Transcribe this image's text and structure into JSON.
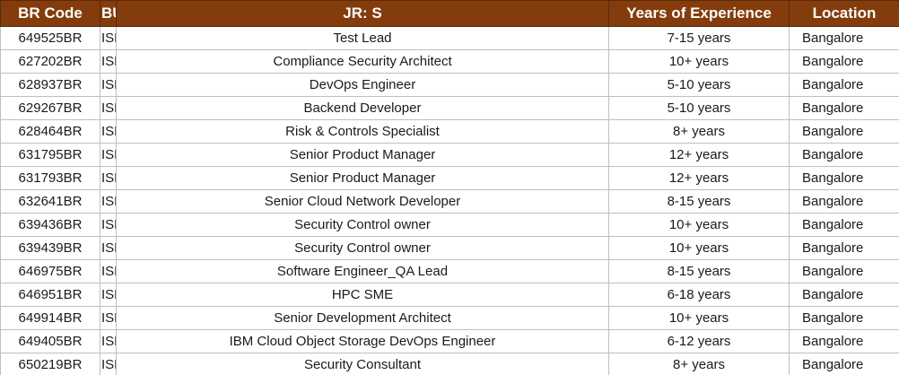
{
  "headers": {
    "br_code": "BR Code",
    "bu": "BU",
    "jr": "JR: S",
    "years": "Years of Experience",
    "location": "Location"
  },
  "rows": [
    {
      "br": "649525BR",
      "bu": "ISL",
      "jr": "Test Lead",
      "years": "7-15 years",
      "location": "Bangalore"
    },
    {
      "br": "627202BR",
      "bu": "ISL",
      "jr": "Compliance Security Architect",
      "years": "10+ years",
      "location": "Bangalore"
    },
    {
      "br": "628937BR",
      "bu": "ISL",
      "jr": "DevOps Engineer",
      "years": "5-10 years",
      "location": "Bangalore"
    },
    {
      "br": "629267BR",
      "bu": "ISL",
      "jr": "Backend Developer",
      "years": "5-10 years",
      "location": "Bangalore"
    },
    {
      "br": "628464BR",
      "bu": "ISL",
      "jr": "Risk & Controls Specialist",
      "years": "8+ years",
      "location": "Bangalore"
    },
    {
      "br": "631795BR",
      "bu": "ISL",
      "jr": "Senior Product Manager",
      "years": "12+ years",
      "location": "Bangalore"
    },
    {
      "br": "631793BR",
      "bu": "ISL",
      "jr": "Senior Product Manager",
      "years": "12+ years",
      "location": "Bangalore"
    },
    {
      "br": "632641BR",
      "bu": "ISL",
      "jr": "Senior Cloud Network Developer",
      "years": "8-15 years",
      "location": "Bangalore"
    },
    {
      "br": "639436BR",
      "bu": "ISL",
      "jr": "Security Control owner",
      "years": "10+ years",
      "location": "Bangalore"
    },
    {
      "br": "639439BR",
      "bu": "ISL",
      "jr": "Security Control owner",
      "years": "10+ years",
      "location": "Bangalore"
    },
    {
      "br": "646975BR",
      "bu": "ISL",
      "jr": "Software Engineer_QA Lead",
      "years": "8-15 years",
      "location": "Bangalore"
    },
    {
      "br": "646951BR",
      "bu": "ISL",
      "jr": "HPC SME",
      "years": "6-18 years",
      "location": "Bangalore"
    },
    {
      "br": "649914BR",
      "bu": "ISL",
      "jr": "Senior Development Architect",
      "years": "10+ years",
      "location": "Bangalore"
    },
    {
      "br": "649405BR",
      "bu": "ISL",
      "jr": "IBM Cloud Object Storage DevOps Engineer",
      "years": "6-12 years",
      "location": "Bangalore"
    },
    {
      "br": "650219BR",
      "bu": "ISL",
      "jr": "Security Consultant",
      "years": "8+ years",
      "location": "Bangalore"
    }
  ],
  "colors": {
    "header_bg": "#843c0c",
    "header_text": "#ffffff",
    "grid_line": "#bfbfbf"
  }
}
